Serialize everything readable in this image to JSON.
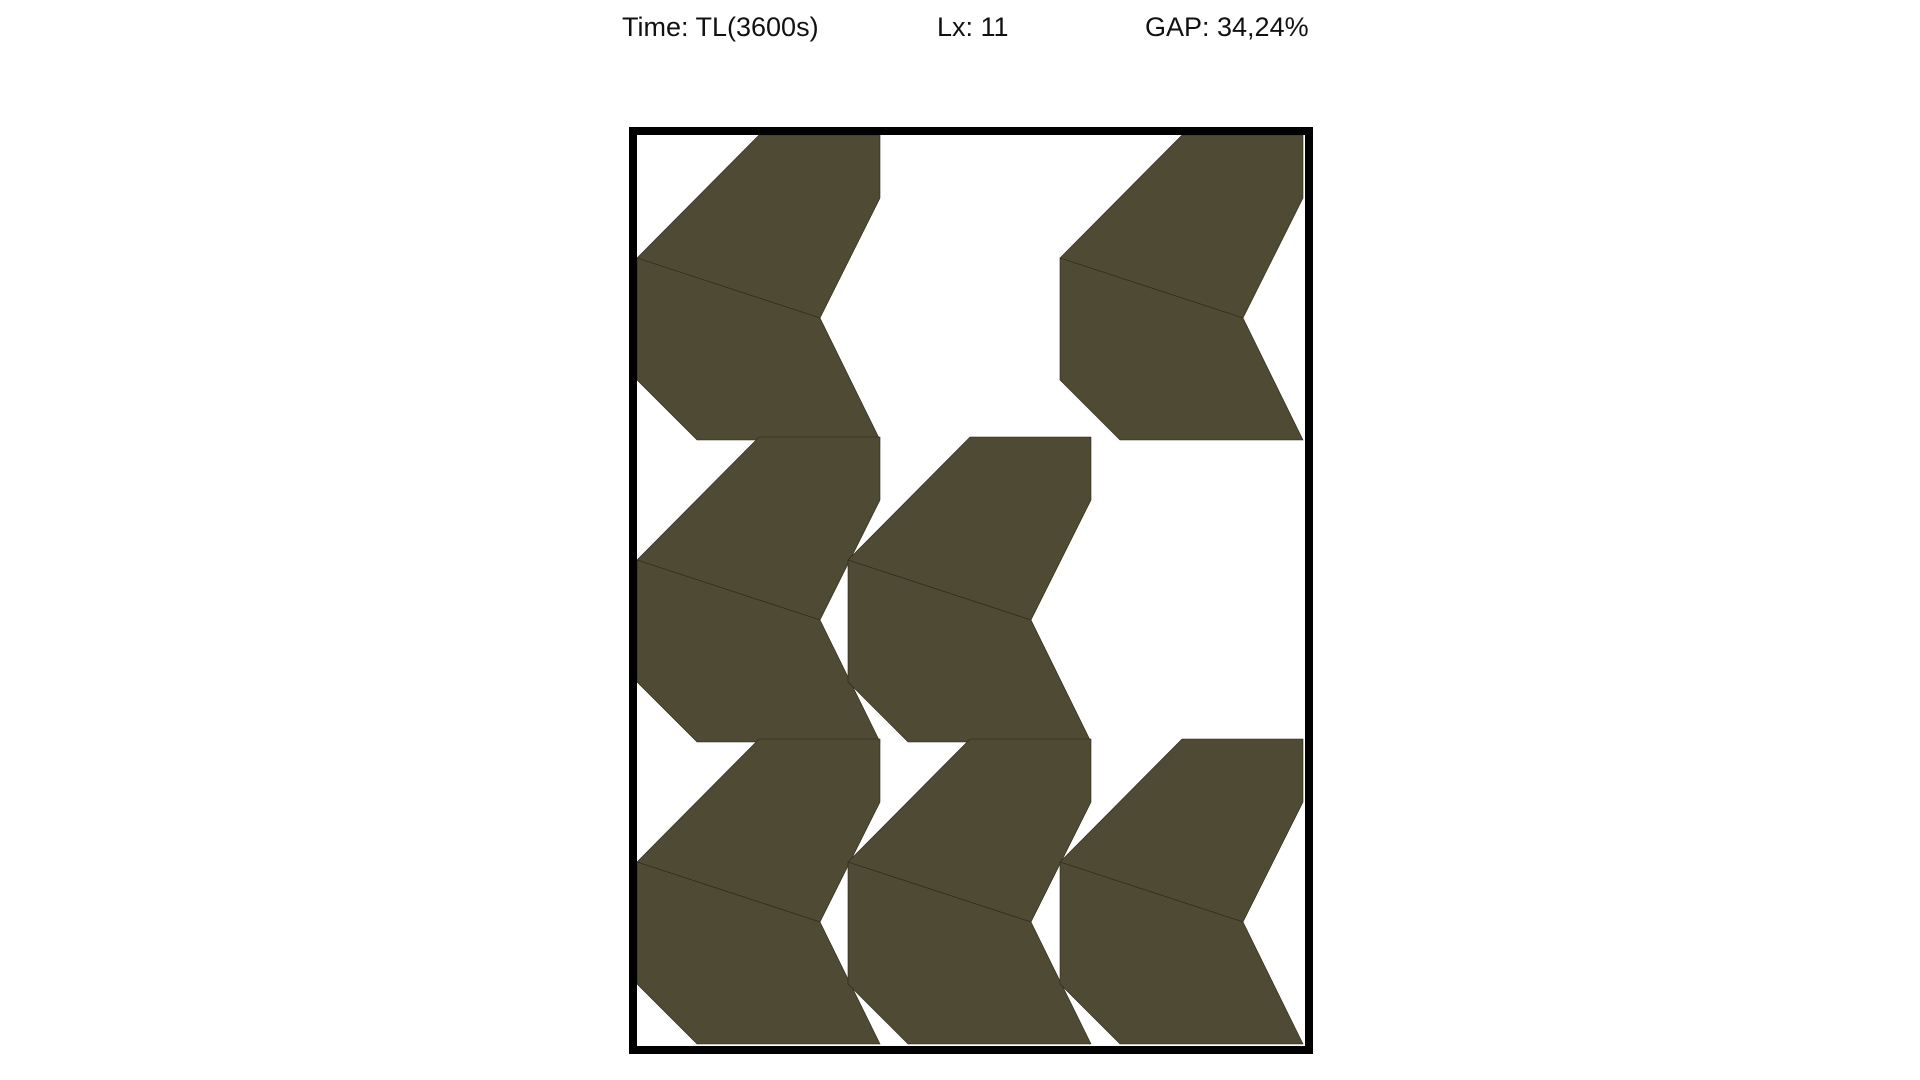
{
  "header": {
    "time_text": "Time: TL(3600s)",
    "lx_text": "Lx: 11",
    "gap_text": "GAP: 34,24%"
  },
  "colors": {
    "piece_fill": "#4f4a33",
    "seam": "#2a2718",
    "frame": "#000000",
    "background": "#ffffff"
  },
  "pieces": [
    {
      "name": "piece-1"
    },
    {
      "name": "piece-2"
    },
    {
      "name": "piece-3"
    },
    {
      "name": "piece-4"
    },
    {
      "name": "piece-5"
    },
    {
      "name": "piece-6"
    },
    {
      "name": "piece-7"
    },
    {
      "name": "piece-8"
    },
    {
      "name": "piece-9"
    },
    {
      "name": "piece-10"
    },
    {
      "name": "piece-11"
    },
    {
      "name": "piece-12"
    },
    {
      "name": "piece-13"
    },
    {
      "name": "piece-14"
    }
  ]
}
